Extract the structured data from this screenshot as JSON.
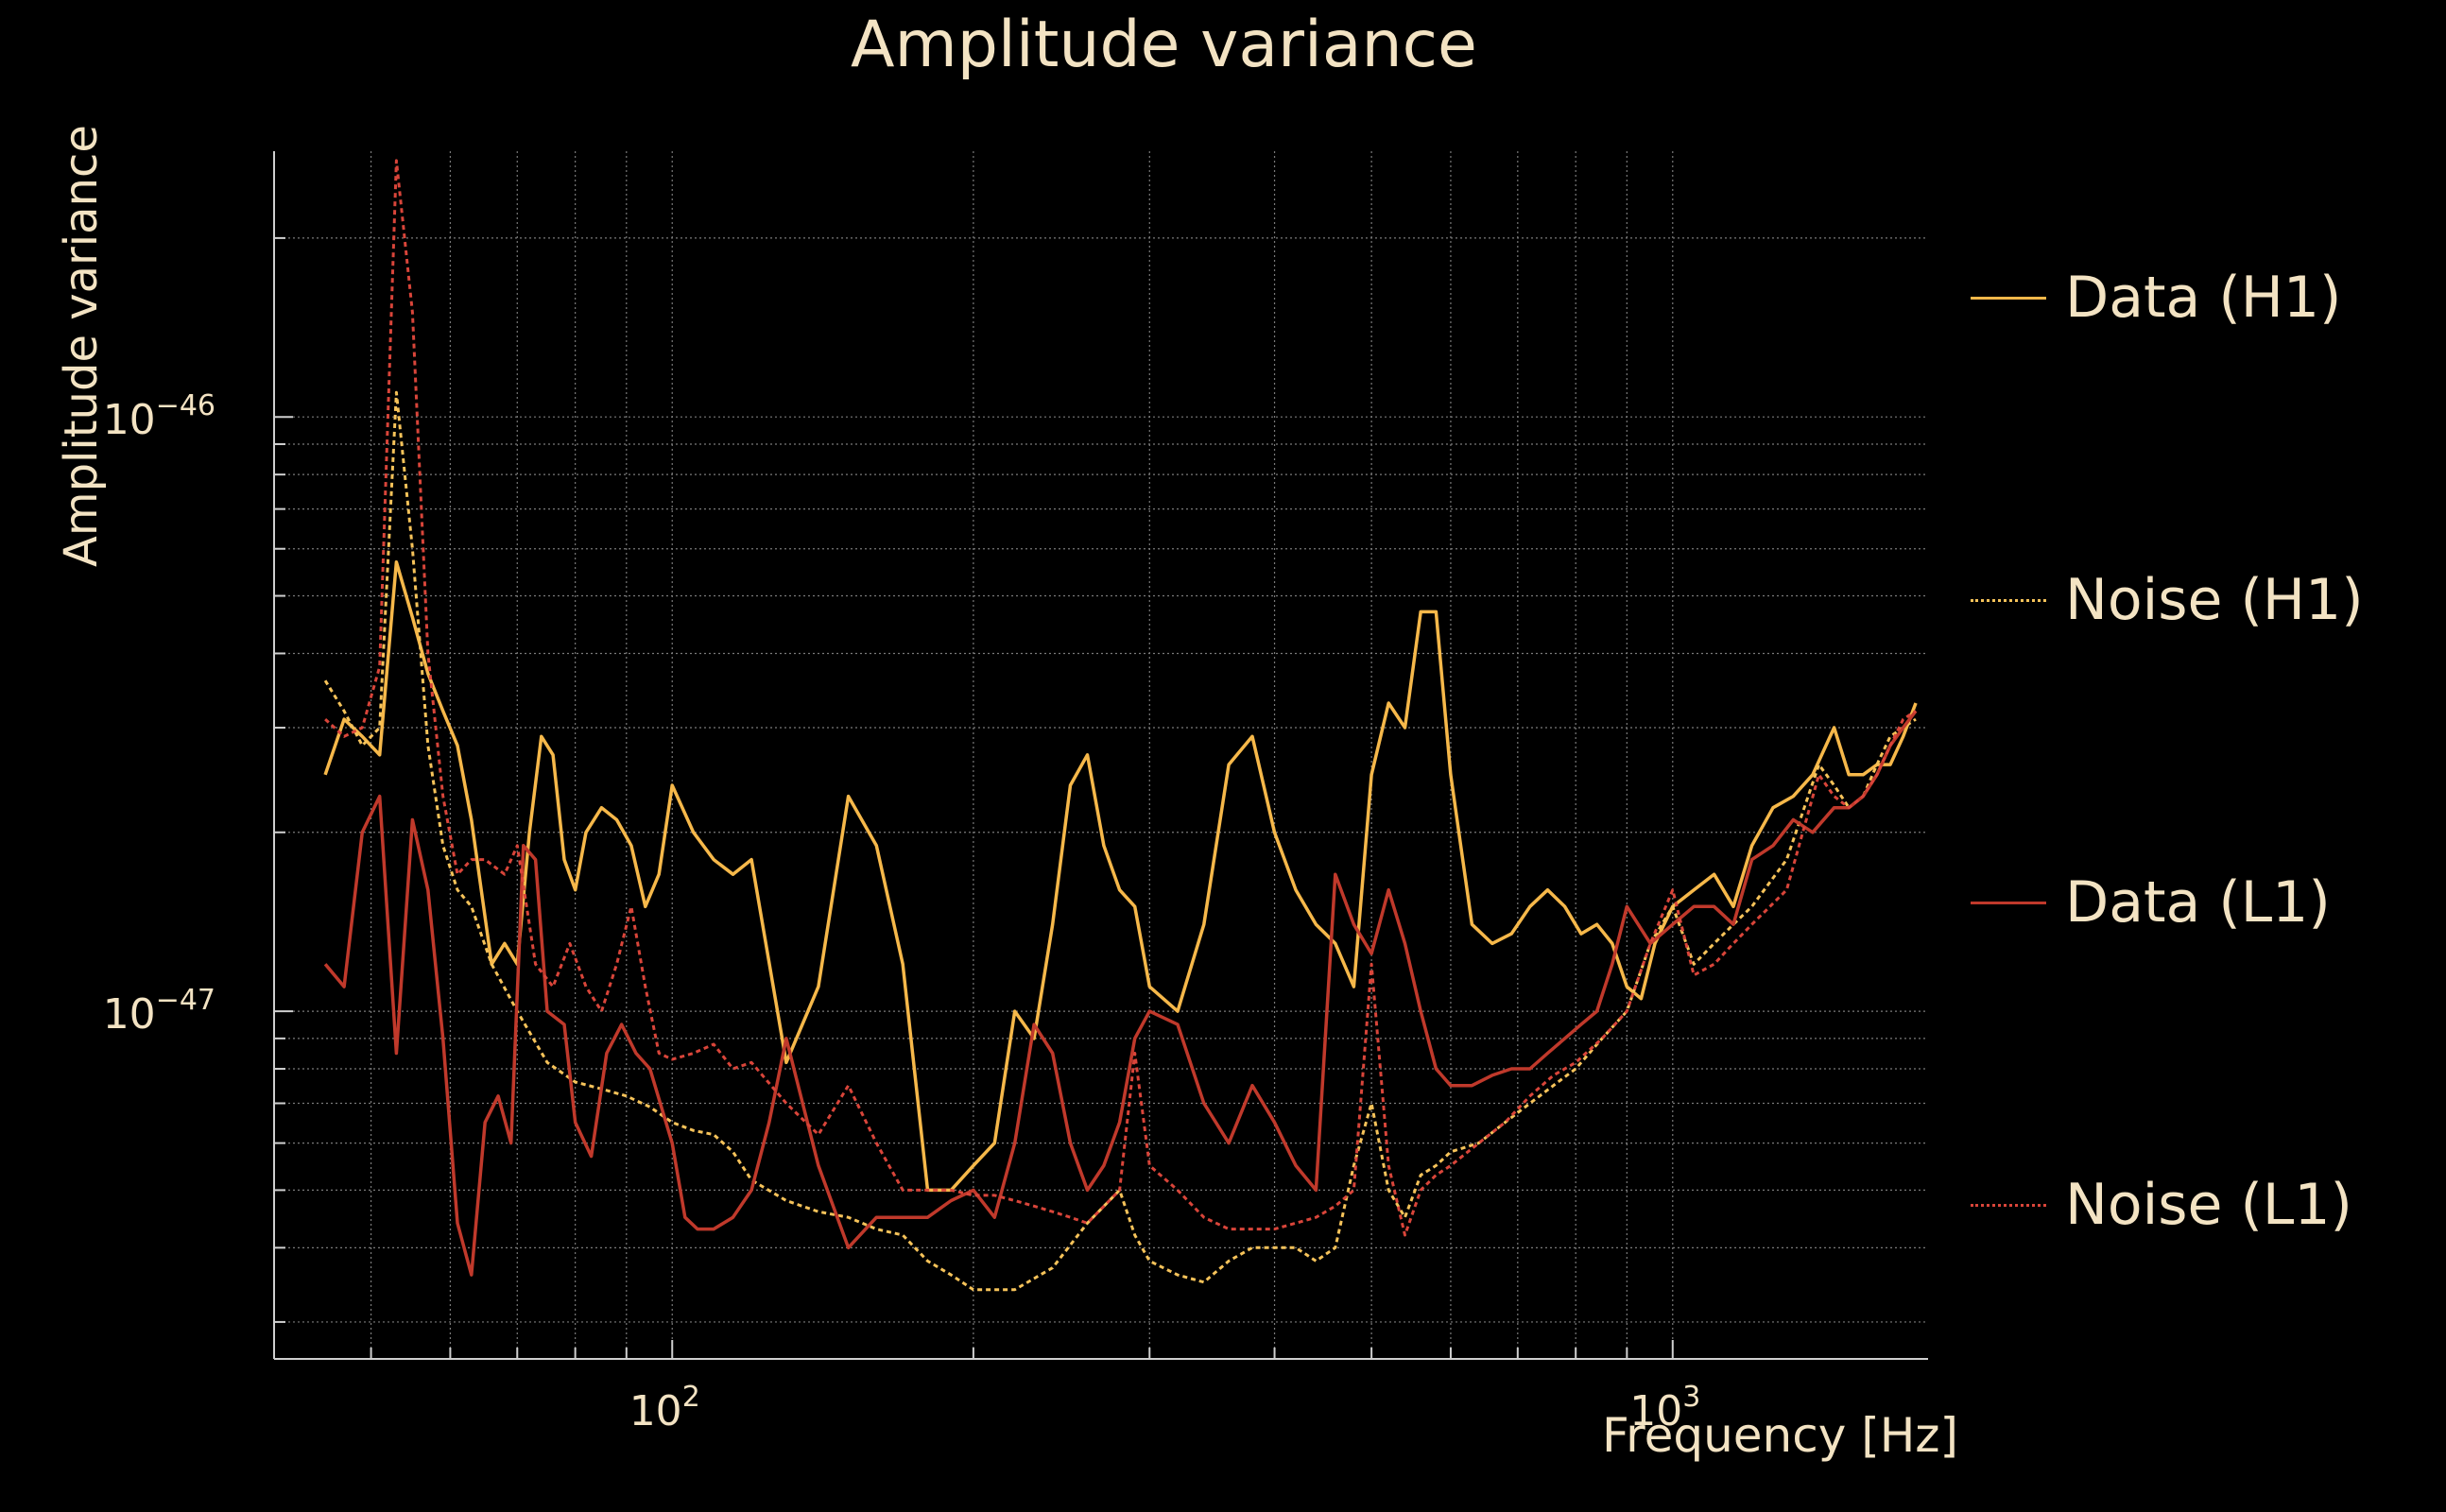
{
  "chart_data": {
    "type": "line",
    "title": "Amplitude variance",
    "xlabel": "Frequency [Hz]",
    "ylabel": "Amplitude variance",
    "xscale": "log",
    "yscale": "log",
    "xlim": [
      40,
      1800
    ],
    "ylim": [
      2.6e-48,
      2.8e-46
    ],
    "xticks": [
      {
        "value": 100,
        "base": "10",
        "exp": "2"
      },
      {
        "value": 1000,
        "base": "10",
        "exp": "3"
      }
    ],
    "yticks": [
      {
        "value": 1e-47,
        "base": "10",
        "exp": "−47"
      },
      {
        "value": 1e-46,
        "base": "10",
        "exp": "−46"
      }
    ],
    "grid": true,
    "legend_position": "right",
    "series": [
      {
        "name": "Data (H1)",
        "color": "#f6b84a",
        "dash": "solid",
        "x": [
          45,
          47,
          49,
          51,
          53,
          55,
          57,
          59,
          61,
          63,
          66,
          68,
          70,
          72,
          74,
          76,
          78,
          80,
          82,
          85,
          88,
          91,
          94,
          97,
          100,
          105,
          110,
          115,
          120,
          130,
          140,
          150,
          160,
          170,
          180,
          190,
          200,
          210,
          220,
          230,
          240,
          250,
          260,
          270,
          280,
          290,
          300,
          320,
          340,
          360,
          380,
          400,
          420,
          440,
          460,
          480,
          500,
          520,
          540,
          560,
          580,
          600,
          630,
          660,
          690,
          720,
          750,
          780,
          810,
          840,
          870,
          900,
          930,
          960,
          1000,
          1050,
          1100,
          1150,
          1200,
          1260,
          1320,
          1380,
          1450,
          1500,
          1550,
          1600,
          1650,
          1700,
          1750
        ],
        "y": [
          2.5e-47,
          3.1e-47,
          2.9e-47,
          2.7e-47,
          5.7e-47,
          4.6e-47,
          3.7e-47,
          3.2e-47,
          2.8e-47,
          2.1e-47,
          1.2e-47,
          1.3e-47,
          1.2e-47,
          2e-47,
          2.9e-47,
          2.7e-47,
          1.8e-47,
          1.6e-47,
          2e-47,
          2.2e-47,
          2.1e-47,
          1.9e-47,
          1.5e-47,
          1.7e-47,
          2.4e-47,
          2e-47,
          1.8e-47,
          1.7e-47,
          1.8e-47,
          8.2e-48,
          1.1e-47,
          2.3e-47,
          1.9e-47,
          1.2e-47,
          5e-48,
          5e-48,
          5.5e-48,
          6e-48,
          1e-47,
          9e-48,
          1.4e-47,
          2.4e-47,
          2.7e-47,
          1.9e-47,
          1.6e-47,
          1.5e-47,
          1.1e-47,
          1e-47,
          1.4e-47,
          2.6e-47,
          2.9e-47,
          2e-47,
          1.6e-47,
          1.4e-47,
          1.3e-47,
          1.1e-47,
          2.5e-47,
          3.3e-47,
          3e-47,
          4.7e-47,
          4.7e-47,
          2.5e-47,
          1.4e-47,
          1.3e-47,
          1.35e-47,
          1.5e-47,
          1.6e-47,
          1.5e-47,
          1.35e-47,
          1.4e-47,
          1.3e-47,
          1.1e-47,
          1.05e-47,
          1.3e-47,
          1.5e-47,
          1.6e-47,
          1.7e-47,
          1.5e-47,
          1.9e-47,
          2.2e-47,
          2.3e-47,
          2.5e-47,
          3e-47,
          2.5e-47,
          2.5e-47,
          2.6e-47,
          2.6e-47,
          2.9e-47,
          3.3e-47
        ]
      },
      {
        "name": "Noise (H1)",
        "color": "#f6c35a",
        "dash": "dotted",
        "x": [
          45,
          47,
          49,
          51,
          53,
          55,
          57,
          59,
          61,
          63,
          66,
          70,
          75,
          80,
          85,
          90,
          95,
          100,
          105,
          110,
          115,
          120,
          130,
          140,
          150,
          160,
          170,
          180,
          190,
          200,
          220,
          240,
          260,
          280,
          290,
          300,
          320,
          340,
          360,
          380,
          400,
          420,
          440,
          460,
          480,
          500,
          520,
          540,
          560,
          580,
          600,
          640,
          680,
          720,
          760,
          800,
          850,
          900,
          950,
          1000,
          1050,
          1100,
          1150,
          1200,
          1300,
          1400,
          1450,
          1500,
          1550,
          1600,
          1650,
          1700,
          1750
        ],
        "y": [
          3.6e-47,
          3.2e-47,
          2.8e-47,
          3e-47,
          1.1e-46,
          6e-47,
          2.8e-47,
          1.9e-47,
          1.6e-47,
          1.5e-47,
          1.2e-47,
          1e-47,
          8.2e-48,
          7.6e-48,
          7.4e-48,
          7.2e-48,
          6.9e-48,
          6.5e-48,
          6.3e-48,
          6.2e-48,
          5.8e-48,
          5.2e-48,
          4.8e-48,
          4.6e-48,
          4.5e-48,
          4.3e-48,
          4.2e-48,
          3.8e-48,
          3.6e-48,
          3.4e-48,
          3.4e-48,
          3.7e-48,
          4.4e-48,
          5e-48,
          4.2e-48,
          3.8e-48,
          3.6e-48,
          3.5e-48,
          3.8e-48,
          4e-48,
          4e-48,
          4e-48,
          3.8e-48,
          4e-48,
          5.5e-48,
          7e-48,
          5e-48,
          4.5e-48,
          5.3e-48,
          5.5e-48,
          5.8e-48,
          6e-48,
          6.5e-48,
          7e-48,
          7.5e-48,
          8e-48,
          9e-48,
          1e-47,
          1.3e-47,
          1.5e-47,
          1.2e-47,
          1.3e-47,
          1.4e-47,
          1.5e-47,
          1.8e-47,
          2.6e-47,
          2.4e-47,
          2.2e-47,
          2.3e-47,
          2.6e-47,
          2.9e-47,
          3e-47,
          3.1e-47
        ]
      },
      {
        "name": "Data (L1)",
        "color": "#c0392b",
        "dash": "solid",
        "x": [
          45,
          47,
          49,
          51,
          53,
          55,
          57,
          59,
          61,
          63,
          65,
          67,
          69,
          71,
          73,
          75,
          78,
          80,
          83,
          86,
          89,
          92,
          95,
          100,
          103,
          106,
          110,
          115,
          120,
          125,
          130,
          140,
          150,
          160,
          170,
          180,
          190,
          200,
          210,
          220,
          230,
          240,
          250,
          260,
          270,
          280,
          290,
          300,
          320,
          340,
          360,
          380,
          400,
          420,
          440,
          460,
          480,
          500,
          520,
          540,
          560,
          580,
          600,
          630,
          660,
          690,
          720,
          750,
          780,
          810,
          840,
          870,
          900,
          950,
          1000,
          1050,
          1100,
          1150,
          1200,
          1260,
          1320,
          1380,
          1450,
          1500,
          1550,
          1600,
          1650,
          1700,
          1750
        ],
        "y": [
          1.2e-47,
          1.1e-47,
          2e-47,
          2.3e-47,
          8.5e-48,
          2.1e-47,
          1.6e-47,
          9e-48,
          4.4e-48,
          3.6e-48,
          6.5e-48,
          7.2e-48,
          6e-48,
          1.9e-47,
          1.8e-47,
          1e-47,
          9.5e-48,
          6.5e-48,
          5.7e-48,
          8.5e-48,
          9.5e-48,
          8.5e-48,
          8e-48,
          6e-48,
          4.5e-48,
          4.3e-48,
          4.3e-48,
          4.5e-48,
          5e-48,
          6.5e-48,
          9e-48,
          5.5e-48,
          4e-48,
          4.5e-48,
          4.5e-48,
          4.5e-48,
          4.8e-48,
          5e-48,
          4.5e-48,
          6e-48,
          9.5e-48,
          8.5e-48,
          6e-48,
          5e-48,
          5.5e-48,
          6.5e-48,
          9e-48,
          1e-47,
          9.5e-48,
          7e-48,
          6e-48,
          7.5e-48,
          6.5e-48,
          5.5e-48,
          5e-48,
          1.7e-47,
          1.4e-47,
          1.25e-47,
          1.6e-47,
          1.3e-47,
          1e-47,
          8e-48,
          7.5e-48,
          7.5e-48,
          7.8e-48,
          8e-48,
          8e-48,
          8.5e-48,
          9e-48,
          9.5e-48,
          1e-47,
          1.2e-47,
          1.5e-47,
          1.3e-47,
          1.4e-47,
          1.5e-47,
          1.5e-47,
          1.4e-47,
          1.8e-47,
          1.9e-47,
          2.1e-47,
          2e-47,
          2.2e-47,
          2.2e-47,
          2.3e-47,
          2.5e-47,
          2.8e-47,
          3e-47,
          3.2e-47
        ]
      },
      {
        "name": "Noise (L1)",
        "color": "#d9453a",
        "dash": "dotted",
        "x": [
          45,
          47,
          49,
          51,
          53,
          55,
          57,
          59,
          61,
          63,
          65,
          68,
          70,
          73,
          76,
          79,
          82,
          85,
          88,
          91,
          94,
          97,
          100,
          105,
          110,
          115,
          120,
          130,
          140,
          150,
          160,
          170,
          180,
          190,
          200,
          210,
          220,
          230,
          240,
          250,
          260,
          280,
          290,
          300,
          320,
          340,
          360,
          380,
          400,
          420,
          440,
          460,
          480,
          500,
          520,
          540,
          560,
          580,
          600,
          640,
          680,
          720,
          760,
          800,
          850,
          900,
          950,
          1000,
          1050,
          1100,
          1150,
          1200,
          1300,
          1400,
          1450,
          1500,
          1550,
          1600,
          1650,
          1700,
          1750
        ],
        "y": [
          3.1e-47,
          2.9e-47,
          3e-47,
          3.8e-47,
          2.7e-46,
          1.5e-46,
          4e-47,
          2.3e-47,
          1.7e-47,
          1.8e-47,
          1.8e-47,
          1.7e-47,
          1.9e-47,
          1.2e-47,
          1.1e-47,
          1.3e-47,
          1.1e-47,
          1e-47,
          1.2e-47,
          1.5e-47,
          1.1e-47,
          8.5e-48,
          8.3e-48,
          8.5e-48,
          8.8e-48,
          8e-48,
          8.2e-48,
          7e-48,
          6.2e-48,
          7.5e-48,
          6e-48,
          5e-48,
          5e-48,
          5e-48,
          4.9e-48,
          4.9e-48,
          4.8e-48,
          4.7e-48,
          4.6e-48,
          4.5e-48,
          4.4e-48,
          5e-48,
          8.5e-48,
          5.5e-48,
          5e-48,
          4.5e-48,
          4.3e-48,
          4.3e-48,
          4.3e-48,
          4.4e-48,
          4.5e-48,
          4.7e-48,
          5e-48,
          1.2e-47,
          5.5e-48,
          4.2e-48,
          5e-48,
          5.3e-48,
          5.5e-48,
          6e-48,
          6.5e-48,
          7.2e-48,
          7.8e-48,
          8.2e-48,
          9e-48,
          1e-47,
          1.3e-47,
          1.6e-47,
          1.15e-47,
          1.2e-47,
          1.3e-47,
          1.4e-47,
          1.6e-47,
          2.5e-47,
          2.3e-47,
          2.2e-47,
          2.3e-47,
          2.5e-47,
          2.8e-47,
          3.1e-47,
          3.2e-47
        ]
      }
    ]
  }
}
